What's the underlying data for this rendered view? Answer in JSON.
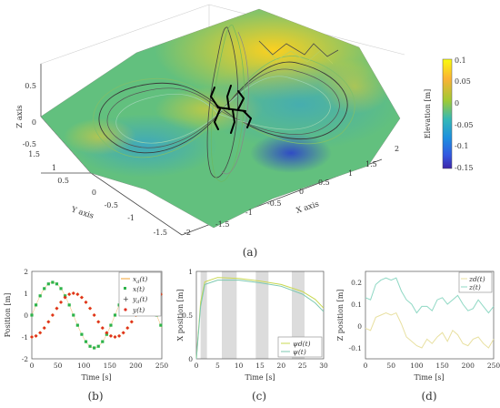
{
  "chart_data": [
    {
      "type": "surface",
      "panel": "(a)",
      "xlabel": "X axis",
      "ylabel": "Y axis",
      "zlabel": "Z axis",
      "x_ticks": [
        "-1.5",
        "-1",
        "-0.5",
        "0",
        "0.5",
        "1",
        "1.5",
        "2"
      ],
      "y_ticks": [
        "-1.5",
        "-1",
        "-0.5",
        "0",
        "0.5",
        "1",
        "1.5",
        "-2"
      ],
      "z_ticks": [
        "0.5",
        "0",
        "-0.5"
      ],
      "colorbar": {
        "label": "Elevation [m]",
        "ticks": [
          "0.1",
          "0.05",
          "0",
          "-0.05",
          "-0.1",
          "-0.15"
        ],
        "range": [
          -0.15,
          0.1
        ],
        "colors": [
          "#f9fb0e",
          "#fbb235",
          "#9fca35",
          "#35b8b6",
          "#1d8fdf",
          "#3357e0",
          "#3e26a8"
        ]
      }
    },
    {
      "type": "scatter",
      "panel": "(b)",
      "xlabel": "Time [s]",
      "ylabel": "Position [m]",
      "xlim": [
        0,
        250
      ],
      "ylim": [
        -2,
        2
      ],
      "x_ticks": [
        "0",
        "50",
        "100",
        "150",
        "200",
        "250"
      ],
      "y_ticks": [
        "2",
        "1",
        "0",
        "-1",
        "-2"
      ],
      "legend": [
        "x_d(t)",
        "x(t)",
        "y_d(t)",
        "y(t)"
      ],
      "legend_labels": {
        "xd_main": "x",
        "xd_sub": "d",
        "x": "x",
        "yd_main": "y",
        "yd_sub": "d",
        "y": "y",
        "arg": "(t)"
      },
      "series": [
        {
          "name": "x_d(t)",
          "color": "#f0a030",
          "marker": "line",
          "amplitude": 1.5,
          "period": 160,
          "phase_deg": 0,
          "offset": 0
        },
        {
          "name": "x(t)",
          "color": "#2db34a",
          "marker": "square",
          "amplitude": 1.5,
          "period": 160,
          "phase_deg": 0,
          "offset": 0
        },
        {
          "name": "y_d(t)",
          "color": "#e8a020",
          "marker": "plus",
          "amplitude": 1.0,
          "period": 160,
          "phase_deg": 90,
          "offset": 0
        },
        {
          "name": "y(t)",
          "color": "#e03020",
          "marker": "dot",
          "amplitude": 1.0,
          "period": 160,
          "phase_deg": 90,
          "offset": 0
        }
      ],
      "t_samples": [
        0,
        8,
        16,
        24,
        32,
        40,
        48,
        56,
        64,
        72,
        80,
        88,
        96,
        104,
        112,
        120,
        128,
        136,
        144,
        152,
        160,
        168,
        176,
        184,
        192,
        200,
        208,
        216,
        224,
        232,
        240,
        248
      ]
    },
    {
      "type": "line",
      "panel": "(c)",
      "xlabel": "Time [s]",
      "ylabel": "X position [m]",
      "xlim": [
        0,
        30
      ],
      "ylim": [
        0,
        1
      ],
      "x_ticks": [
        "0",
        "5",
        "10",
        "15",
        "20",
        "25",
        "30"
      ],
      "y_ticks": [
        "1",
        "0.5",
        "0"
      ],
      "legend": [
        "ψd(t)",
        "ψ(t)"
      ],
      "shaded_intervals": [
        [
          1,
          2.5
        ],
        [
          6,
          9.5
        ],
        [
          14,
          17
        ],
        [
          22.5,
          25.5
        ]
      ],
      "series": [
        {
          "name": "ψd(t)",
          "color": "#c8d850",
          "x": [
            0,
            1,
            2,
            5,
            10,
            15,
            20,
            25,
            28,
            30
          ],
          "y": [
            0,
            0.65,
            0.88,
            0.93,
            0.92,
            0.89,
            0.85,
            0.77,
            0.68,
            0.58
          ]
        },
        {
          "name": "ψ(t)",
          "color": "#7cc8b0",
          "x": [
            0,
            1,
            2,
            5,
            10,
            15,
            20,
            25,
            28,
            30
          ],
          "y": [
            0,
            0.6,
            0.85,
            0.9,
            0.9,
            0.87,
            0.83,
            0.74,
            0.64,
            0.54
          ]
        }
      ]
    },
    {
      "type": "line",
      "panel": "(d)",
      "xlabel": "Time [s]",
      "ylabel": "Z position [m]",
      "xlim": [
        0,
        250
      ],
      "ylim": [
        -0.15,
        0.25
      ],
      "x_ticks": [
        "0",
        "50",
        "100",
        "150",
        "200",
        "250"
      ],
      "y_ticks": [
        "0.2",
        "0.1",
        "0",
        "-0.1"
      ],
      "legend": [
        "zd(t)",
        "z(t)"
      ],
      "series": [
        {
          "name": "zd(t)",
          "color": "#e8e0a0",
          "x": [
            0,
            10,
            20,
            30,
            40,
            50,
            60,
            70,
            80,
            90,
            100,
            110,
            120,
            130,
            140,
            150,
            160,
            170,
            180,
            190,
            200,
            210,
            220,
            230,
            240,
            250
          ],
          "y": [
            -0.01,
            -0.02,
            0.04,
            0.05,
            0.06,
            0.05,
            0.06,
            0.01,
            -0.05,
            -0.07,
            -0.09,
            -0.1,
            -0.06,
            -0.08,
            -0.05,
            -0.03,
            -0.07,
            -0.02,
            -0.04,
            -0.08,
            -0.09,
            -0.06,
            -0.05,
            -0.08,
            -0.1,
            -0.06
          ]
        },
        {
          "name": "z(t)",
          "color": "#8fd8c4",
          "x": [
            0,
            10,
            20,
            30,
            40,
            50,
            60,
            70,
            80,
            90,
            100,
            110,
            120,
            130,
            140,
            150,
            160,
            170,
            180,
            190,
            200,
            210,
            220,
            230,
            240,
            250
          ],
          "y": [
            0.13,
            0.12,
            0.19,
            0.21,
            0.22,
            0.21,
            0.22,
            0.16,
            0.12,
            0.1,
            0.06,
            0.09,
            0.09,
            0.07,
            0.12,
            0.13,
            0.1,
            0.12,
            0.14,
            0.1,
            0.07,
            0.08,
            0.12,
            0.09,
            0.06,
            0.09
          ]
        }
      ]
    }
  ],
  "captions": {
    "a": "(a)",
    "b": "(b)",
    "c": "(c)",
    "d": "(d)"
  }
}
